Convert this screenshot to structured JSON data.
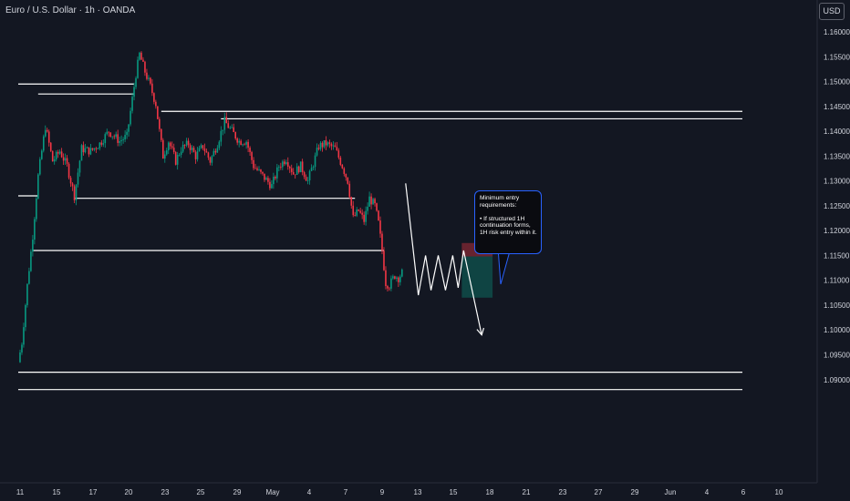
{
  "header": {
    "symbol_title": "Euro / U.S. Dollar · 1h · OANDA",
    "currency": "USD"
  },
  "note": {
    "text": "Minimum entry requirements:\n\n• If structured 1H continuation forms, 1H risk entry within it."
  },
  "colors": {
    "background": "#131722",
    "up_candle": "#089981",
    "down_candle": "#f23645",
    "level_lines": "#ffffff",
    "axis_text": "#d1d4dc",
    "stop_zone": "#f23645",
    "target_zone": "#089981",
    "note_border": "#2962ff"
  },
  "chart_data": {
    "type": "candlestick",
    "instrument": "EUR/USD",
    "timeframe": "1h",
    "price_axis": {
      "range": [
        1.0875,
        1.1635
      ],
      "ticks": [
        "1.16000",
        "1.15500",
        "1.15000",
        "1.14500",
        "1.14000",
        "1.13500",
        "1.13000",
        "1.12500",
        "1.12000",
        "1.11500",
        "1.11000",
        "1.10500",
        "1.10000",
        "1.09500",
        "1.09000"
      ]
    },
    "time_axis": {
      "ticks": [
        "11",
        "15",
        "17",
        "20",
        "23",
        "25",
        "29",
        "May",
        "4",
        "7",
        "9",
        "13",
        "15",
        "18",
        "21",
        "23",
        "27",
        "29",
        "Jun",
        "4",
        "6",
        "10"
      ]
    },
    "price_path": [
      {
        "x": 0.0,
        "p": 1.0935
      },
      {
        "x": 0.2,
        "p": 1.0975
      },
      {
        "x": 0.5,
        "p": 1.109
      },
      {
        "x": 0.8,
        "p": 1.119
      },
      {
        "x": 1.1,
        "p": 1.131
      },
      {
        "x": 1.5,
        "p": 1.141
      },
      {
        "x": 1.9,
        "p": 1.134
      },
      {
        "x": 2.3,
        "p": 1.136
      },
      {
        "x": 2.7,
        "p": 1.133
      },
      {
        "x": 3.1,
        "p": 1.127
      },
      {
        "x": 3.5,
        "p": 1.1365
      },
      {
        "x": 4.0,
        "p": 1.136
      },
      {
        "x": 4.5,
        "p": 1.1375
      },
      {
        "x": 5.0,
        "p": 1.14
      },
      {
        "x": 5.6,
        "p": 1.138
      },
      {
        "x": 6.0,
        "p": 1.139
      },
      {
        "x": 6.2,
        "p": 1.144
      },
      {
        "x": 6.5,
        "p": 1.1515
      },
      {
        "x": 6.7,
        "p": 1.1555
      },
      {
        "x": 7.0,
        "p": 1.152
      },
      {
        "x": 7.3,
        "p": 1.149
      },
      {
        "x": 7.6,
        "p": 1.1455
      },
      {
        "x": 7.8,
        "p": 1.14
      },
      {
        "x": 8.0,
        "p": 1.135
      },
      {
        "x": 8.3,
        "p": 1.138
      },
      {
        "x": 8.7,
        "p": 1.134
      },
      {
        "x": 9.0,
        "p": 1.1365
      },
      {
        "x": 9.4,
        "p": 1.1375
      },
      {
        "x": 9.8,
        "p": 1.135
      },
      {
        "x": 10.2,
        "p": 1.137
      },
      {
        "x": 10.6,
        "p": 1.134
      },
      {
        "x": 11.0,
        "p": 1.1375
      },
      {
        "x": 11.4,
        "p": 1.142
      },
      {
        "x": 11.7,
        "p": 1.1405
      },
      {
        "x": 12.2,
        "p": 1.138
      },
      {
        "x": 12.6,
        "p": 1.138
      },
      {
        "x": 13.0,
        "p": 1.133
      },
      {
        "x": 13.5,
        "p": 1.131
      },
      {
        "x": 14.0,
        "p": 1.129
      },
      {
        "x": 14.4,
        "p": 1.133
      },
      {
        "x": 14.8,
        "p": 1.1345
      },
      {
        "x": 15.2,
        "p": 1.1315
      },
      {
        "x": 15.6,
        "p": 1.133
      },
      {
        "x": 16.0,
        "p": 1.13
      },
      {
        "x": 16.3,
        "p": 1.1335
      },
      {
        "x": 16.6,
        "p": 1.137
      },
      {
        "x": 17.0,
        "p": 1.1375
      },
      {
        "x": 17.5,
        "p": 1.1365
      },
      {
        "x": 17.9,
        "p": 1.133
      },
      {
        "x": 18.2,
        "p": 1.13
      },
      {
        "x": 18.5,
        "p": 1.1225
      },
      {
        "x": 18.8,
        "p": 1.124
      },
      {
        "x": 19.1,
        "p": 1.122
      },
      {
        "x": 19.4,
        "p": 1.1265
      },
      {
        "x": 19.7,
        "p": 1.125
      },
      {
        "x": 19.9,
        "p": 1.1215
      },
      {
        "x": 20.1,
        "p": 1.116
      },
      {
        "x": 20.3,
        "p": 1.1095
      },
      {
        "x": 20.5,
        "p": 1.109
      },
      {
        "x": 20.8,
        "p": 1.111
      },
      {
        "x": 21.0,
        "p": 1.1105
      },
      {
        "x": 21.2,
        "p": 1.1115
      }
    ],
    "horizontal_levels": [
      {
        "price": 1.1495,
        "from_x": 0.0,
        "to_x": 6.4
      },
      {
        "price": 1.1475,
        "from_x": 1.1,
        "to_x": 6.4
      },
      {
        "price": 1.144,
        "from_x": 7.9,
        "to_x": 40.0
      },
      {
        "price": 1.1425,
        "from_x": 11.2,
        "to_x": 40.0
      },
      {
        "price": 1.127,
        "from_x": 0.0,
        "to_x": 1.1
      },
      {
        "price": 1.1265,
        "from_x": 3.1,
        "to_x": 18.6
      },
      {
        "price": 1.116,
        "from_x": 0.8,
        "to_x": 20.2
      },
      {
        "price": 1.0915,
        "from_x": 0.0,
        "to_x": 40.0
      },
      {
        "price": 1.088,
        "from_x": 0.0,
        "to_x": 40.0
      }
    ],
    "projection_path": [
      {
        "x": 21.4,
        "p": 1.1295
      },
      {
        "x": 22.1,
        "p": 1.107
      },
      {
        "x": 22.5,
        "p": 1.115
      },
      {
        "x": 22.8,
        "p": 1.108
      },
      {
        "x": 23.2,
        "p": 1.115
      },
      {
        "x": 23.6,
        "p": 1.108
      },
      {
        "x": 24.0,
        "p": 1.115
      },
      {
        "x": 24.3,
        "p": 1.1085
      },
      {
        "x": 24.6,
        "p": 1.116
      },
      {
        "x": 25.6,
        "p": 1.099
      }
    ],
    "position_tool": {
      "from_x": 24.5,
      "to_x": 26.2,
      "stop_top": 1.1175,
      "entry": 1.1148,
      "target": 1.1065
    }
  }
}
